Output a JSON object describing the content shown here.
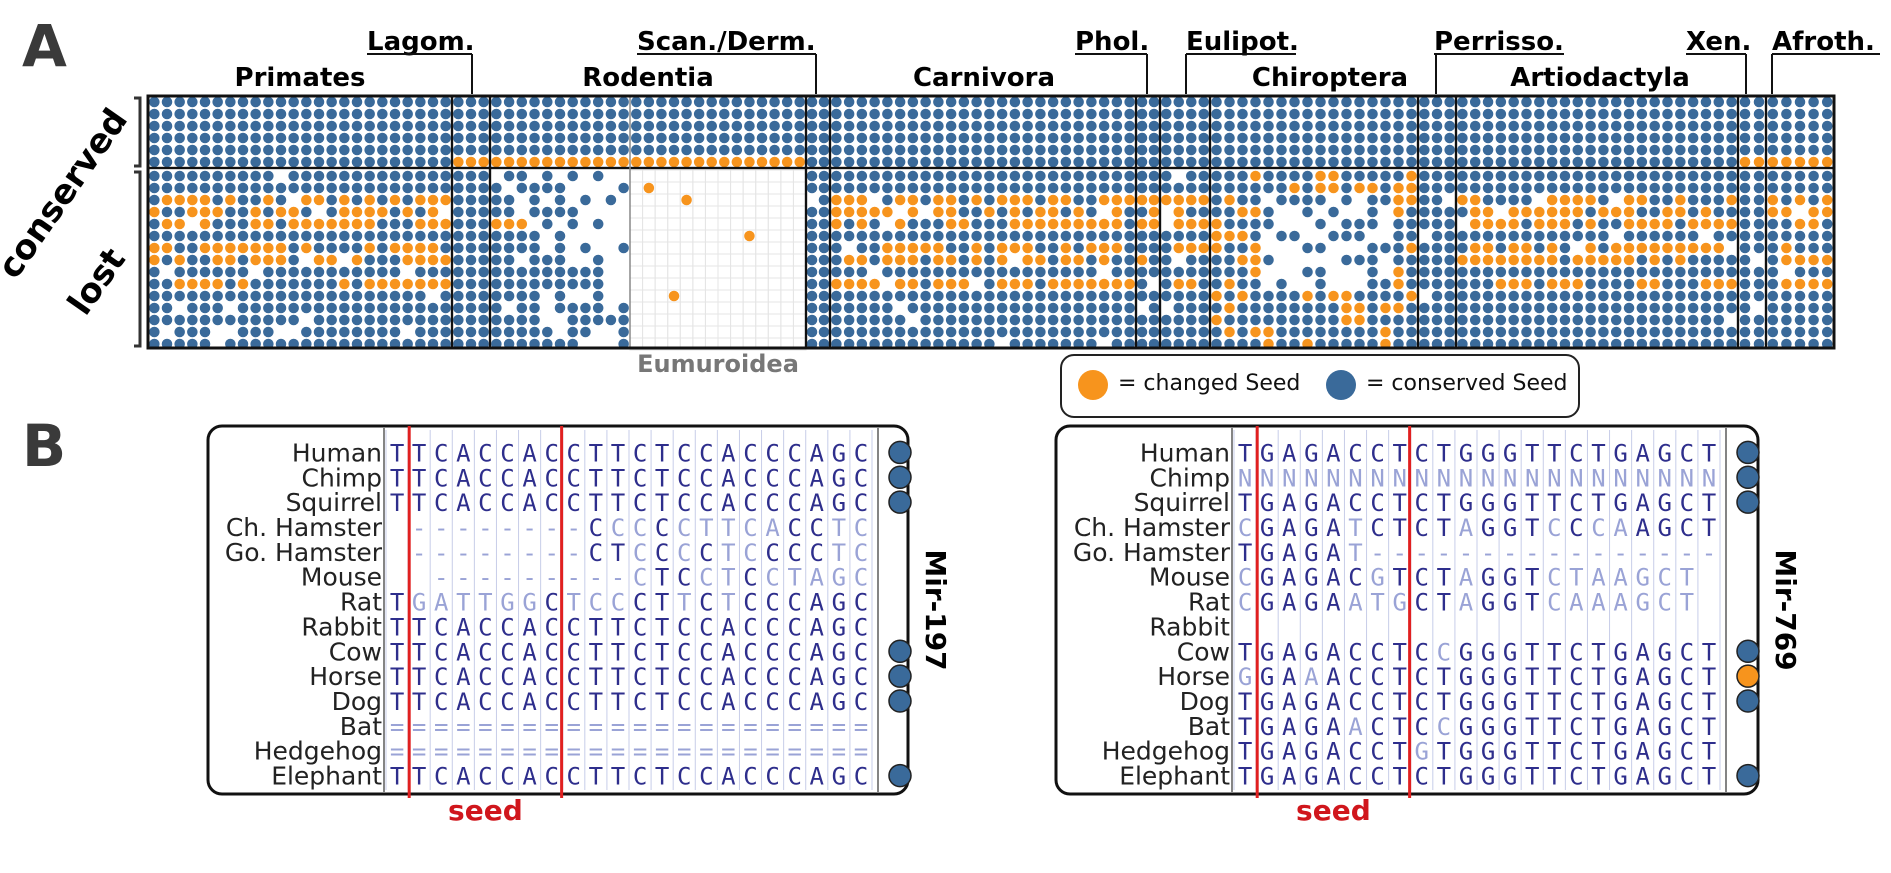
{
  "panel_a": {
    "letter": "A",
    "groups": [
      {
        "label": "Primates",
        "row": 1
      },
      {
        "label": "Lagom.",
        "row": 0
      },
      {
        "label": "Rodentia",
        "row": 1
      },
      {
        "label": "Scan./Derm.",
        "row": 0
      },
      {
        "label": "Carnivora",
        "row": 1
      },
      {
        "label": "Phol.",
        "row": 0
      },
      {
        "label": "Eulipot.",
        "row": 0
      },
      {
        "label": "Chiroptera",
        "row": 1
      },
      {
        "label": "Perrisso.",
        "row": 0
      },
      {
        "label": "Artiodactyla",
        "row": 1
      },
      {
        "label": "Xen.",
        "row": 0
      },
      {
        "label": "Afroth.",
        "row": 0
      }
    ],
    "row_labels": {
      "conserved": "conserved",
      "lost": "lost"
    },
    "sublabel": "Eumuroidea",
    "legend": {
      "changed": "= changed Seed",
      "conserved": "= conserved Seed"
    },
    "colors": {
      "changed": "#f7941d",
      "conserved": "#3a6a9a",
      "empty": "#eeeeee"
    }
  },
  "panel_b": {
    "letter": "B",
    "seed_label": "seed",
    "alignments": [
      {
        "mirna": "Mir-197",
        "species": [
          "Human",
          "Chimp",
          "Squirrel",
          "Ch. Hamster",
          "Go. Hamster",
          "Mouse",
          "Rat",
          "Rabbit",
          "Cow",
          "Horse",
          "Dog",
          "Bat",
          "Hedgehog",
          "Elephant"
        ],
        "sequences": [
          "TTCACCACCTTCTCCACCCAGC",
          "TTCACCACCTTCTCCACCCAGC",
          "TTCACCACCTTCTCCACCCAGC",
          "--------CCCCCTTCACCTC",
          "--------CTCCCCTCCCCTC",
          "---------CTCCTCCTAGC",
          "TGATTGGCTCCCTTCTCCCAGC",
          "TTCACCACCTTCTCCACCCAGC",
          "TTCACCACCTTCTCCACCCAGC",
          "TTCACCACCTTCTCCACCCAGC",
          "TTCACCACCTTCTCCACCCAGC",
          "======================",
          "======================",
          "TTCACCACCTTCTCCACCCAGC"
        ],
        "status": [
          "conserved",
          "conserved",
          "conserved",
          "",
          "",
          "",
          "",
          "",
          "conserved",
          "conserved",
          "conserved",
          "",
          "",
          "conserved"
        ]
      },
      {
        "mirna": "Mir-769",
        "species": [
          "Human",
          "Chimp",
          "Squirrel",
          "Ch. Hamster",
          "Go. Hamster",
          "Mouse",
          "Rat",
          "Rabbit",
          "Cow",
          "Horse",
          "Dog",
          "Bat",
          "Hedgehog",
          "Elephant"
        ],
        "sequences": [
          "TGAGACCTCTGGGTTCTGAGCT",
          "NNNNNNNNNNNNNNNNNNNNNN",
          "TGAGACCTCTGGGTTCTGAGCT",
          "CGAGATCTCTAGGTCCCAAGCT",
          "TGAGAT----------------",
          "CGAGACGTCTAGGTCTAAGCT",
          "CGAGAATGCTAGGTCAAAGCT",
          "",
          "TGAGACCTCCGGGTTCTGAGCT",
          "GGAAACCTCTGGGTTCTGAGCT",
          "TGAGACCTCTGGGTTCTGAGCT",
          "TGAGAACTCCGGGTTCTGAGCT",
          "TGAGACCTGTGGGTTCTGAGCT",
          "TGAGACCTCTGGGTTCTGAGCT"
        ],
        "status": [
          "conserved",
          "conserved",
          "conserved",
          "",
          "",
          "",
          "",
          "",
          "conserved",
          "changed",
          "conserved",
          "",
          "",
          "conserved"
        ]
      }
    ]
  }
}
